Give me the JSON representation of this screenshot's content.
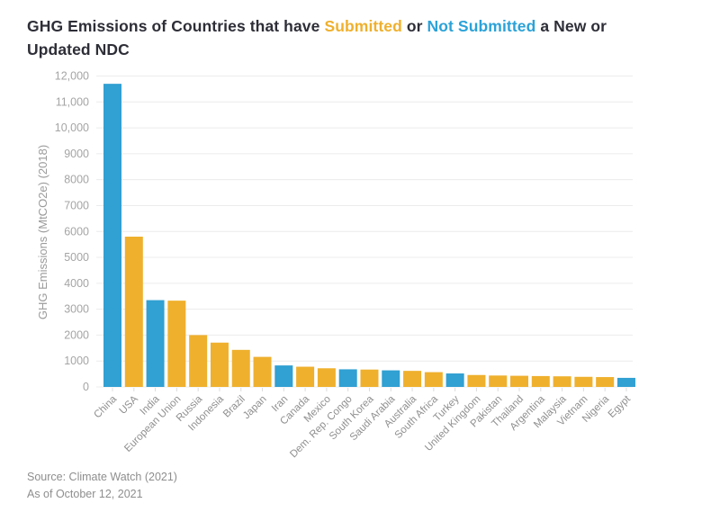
{
  "title": {
    "part1": "GHG Emissions of Countries that have ",
    "submitted_word": "Submitted",
    "middle": " or ",
    "not_submitted_word": "Not Submitted",
    "part2_line1": " a New or",
    "part2_line2": "Updated NDC"
  },
  "source": {
    "line1": "Source: Climate Watch (2021)",
    "line2": "As of October 12, 2021"
  },
  "colors": {
    "submitted": "#EFB02D",
    "not_submitted": "#31A0D2",
    "title_text": "#2E2E38",
    "axis_tick_text": "#A5A5A5",
    "x_label_text": "#8F8F8F",
    "y_axis_title_text": "#9B9B9B",
    "gridline": "#ECECEC",
    "tick_mark": "#DCDCDC"
  },
  "chart_data": {
    "type": "bar",
    "title": "GHG Emissions of Countries that have Submitted or Not Submitted a New or Updated NDC",
    "xlabel": "",
    "ylabel": "GHG Emissions (MtCO2e) (2018)",
    "ylim": [
      0,
      12000
    ],
    "grid": true,
    "legend_position": "none (series meaning shown by colored words in title)",
    "ytick_values": [
      0,
      1000,
      2000,
      3000,
      4000,
      5000,
      6000,
      7000,
      8000,
      9000,
      10000,
      11000,
      12000
    ],
    "ytick_labels": [
      "0",
      "1000",
      "2000",
      "3000",
      "4000",
      "5000",
      "6000",
      "7000",
      "8000",
      "9000",
      "10,000",
      "11,000",
      "12,000"
    ],
    "categories": [
      "China",
      "USA",
      "India",
      "European Union",
      "Russia",
      "Indonesia",
      "Brazil",
      "Japan",
      "Iran",
      "Canada",
      "Mexico",
      "Dem. Rep. Congo",
      "South Korea",
      "Saudi Arabia",
      "Australia",
      "South Africa",
      "Turkey",
      "United Kingdom",
      "Pakistan",
      "Thailand",
      "Argentina",
      "Malaysia",
      "Vietnam",
      "Nigeria",
      "Egypt"
    ],
    "values": [
      11700,
      5800,
      3350,
      3330,
      2000,
      1710,
      1430,
      1160,
      830,
      780,
      720,
      680,
      670,
      640,
      620,
      570,
      520,
      460,
      440,
      430,
      420,
      410,
      390,
      380,
      350
    ],
    "status": [
      "not_submitted",
      "submitted",
      "not_submitted",
      "submitted",
      "submitted",
      "submitted",
      "submitted",
      "submitted",
      "not_submitted",
      "submitted",
      "submitted",
      "not_submitted",
      "submitted",
      "not_submitted",
      "submitted",
      "submitted",
      "not_submitted",
      "submitted",
      "submitted",
      "submitted",
      "submitted",
      "submitted",
      "submitted",
      "submitted",
      "not_submitted"
    ]
  }
}
